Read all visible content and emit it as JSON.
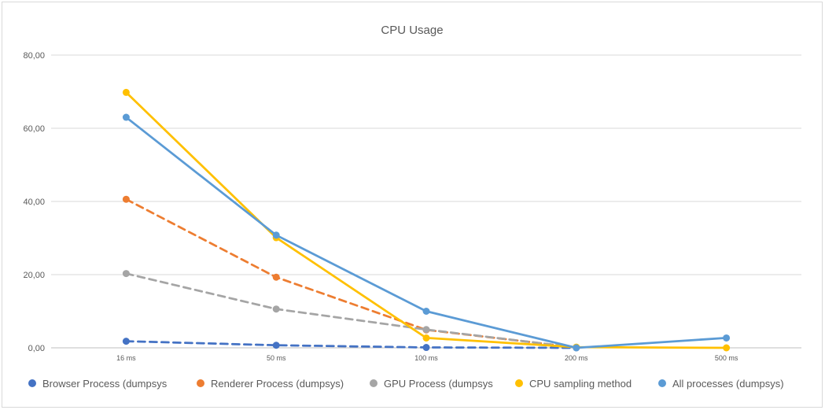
{
  "chart_data": {
    "type": "line",
    "title": "CPU Usage",
    "xlabel": "",
    "ylabel": "",
    "categories": [
      "16 ms",
      "50 ms",
      "100 ms",
      "200 ms",
      "500 ms"
    ],
    "ylim": [
      0,
      80
    ],
    "yticks": [
      0,
      20,
      40,
      60,
      80
    ],
    "ytick_labels": [
      "0,00",
      "20,00",
      "40,00",
      "60,00",
      "80,00"
    ],
    "grid": true,
    "legend_position": "bottom",
    "series": [
      {
        "name": "Browser Process (dumpsys",
        "values": [
          1.8,
          0.7,
          0.1,
          0.0,
          null
        ],
        "color": "#4472c4",
        "dash": true
      },
      {
        "name": "Renderer Process (dumpsys)",
        "values": [
          40.6,
          19.3,
          4.9,
          0.1,
          null
        ],
        "color": "#ed7d31",
        "dash": true
      },
      {
        "name": "GPU Process (dumpsys",
        "values": [
          20.3,
          10.6,
          5.0,
          0.1,
          null
        ],
        "color": "#a5a5a5",
        "dash": true
      },
      {
        "name": "CPU sampling method",
        "values": [
          69.8,
          30.1,
          2.7,
          0.2,
          0.0
        ],
        "color": "#ffc000",
        "dash": false
      },
      {
        "name": "All processes (dumpsys)",
        "values": [
          63.0,
          30.8,
          10.0,
          0.0,
          2.7
        ],
        "color": "#5b9bd5",
        "dash": false
      }
    ]
  }
}
